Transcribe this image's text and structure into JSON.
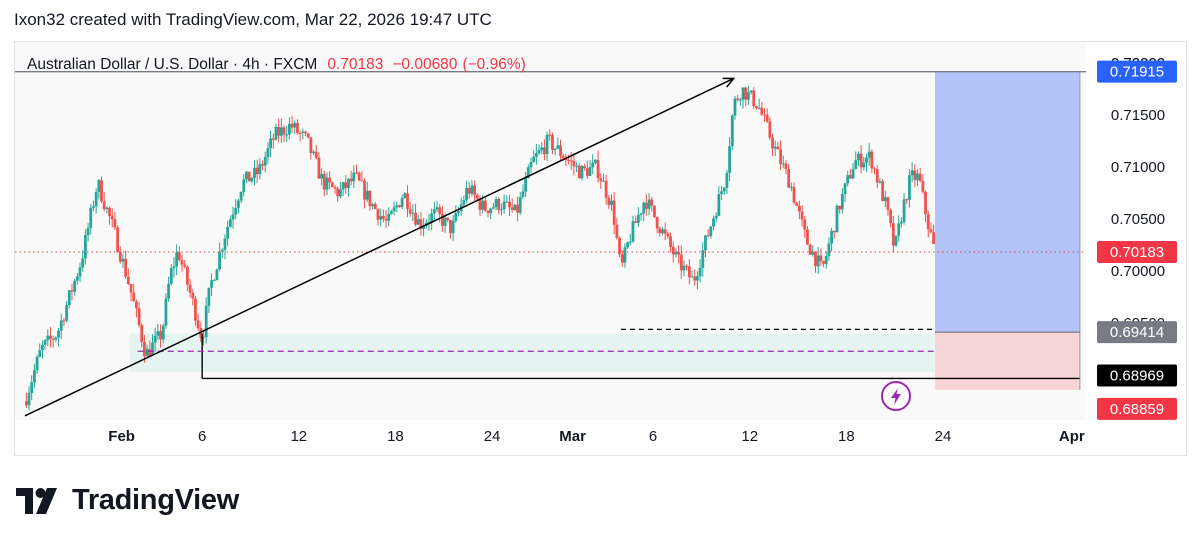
{
  "caption": "Ixon32 created with TradingView.com, Mar 22, 2026 19:47 UTC",
  "logo": {
    "text": "TradingView",
    "icon": "tradingview-logo-icon"
  },
  "colors": {
    "up": "#26a69a",
    "down": "#ef5350",
    "target_zone": "#b3c4fb",
    "stop_zone": "#f7d4d6",
    "support_zone": "#e6f4f1",
    "price_line": "#e3424e",
    "badge_current": "#f23645",
    "badge_target": "#2962ff",
    "badge_entry": "#787b86",
    "badge_level": "#000000",
    "badge_stop": "#f23645",
    "dashed_purple": "#9c27b0",
    "icon": "#9c27b0"
  },
  "chart_data": {
    "type": "candlestick",
    "symbol": "Australian Dollar / U.S. Dollar",
    "interval": "4h",
    "exchange": "FXCM",
    "last_price": "0.70183",
    "change": "−0.00680",
    "change_pct": "(−0.96%)",
    "ylim": [
      0.6857,
      0.722
    ],
    "x_range": [
      "2026-01-26T00:00",
      "2026-04-02T12:00"
    ],
    "y_ticks": [
      "0.70000",
      "0.70500",
      "0.71000",
      "0.71500",
      "0.72000"
    ],
    "x_ticks": [
      {
        "label": "Feb",
        "date": "2026-02-01"
      },
      {
        "label": "6",
        "date": "2026-02-06"
      },
      {
        "label": "12",
        "date": "2026-02-12"
      },
      {
        "label": "18",
        "date": "2026-02-18"
      },
      {
        "label": "24",
        "date": "2026-02-24"
      },
      {
        "label": "Mar",
        "date": "2026-03-01"
      },
      {
        "label": "6",
        "date": "2026-03-06"
      },
      {
        "label": "12",
        "date": "2026-03-12"
      },
      {
        "label": "18",
        "date": "2026-03-18"
      },
      {
        "label": "24",
        "date": "2026-03-24"
      },
      {
        "label": "Apr",
        "date": "2026-04-01"
      }
    ],
    "price_path": [
      [
        "2026-01-26T00:00",
        0.6875
      ],
      [
        "2026-01-27T00:00",
        0.6925
      ],
      [
        "2026-01-28T00:00",
        0.694
      ],
      [
        "2026-01-29T12:00",
        0.701
      ],
      [
        "2026-01-30T12:00",
        0.7085
      ],
      [
        "2026-01-31T12:00",
        0.704
      ],
      [
        "2026-02-01T12:00",
        0.6985
      ],
      [
        "2026-02-02T12:00",
        0.692
      ],
      [
        "2026-02-03T12:00",
        0.694
      ],
      [
        "2026-02-04T00:00",
        0.6995
      ],
      [
        "2026-02-04T12:00",
        0.702
      ],
      [
        "2026-02-05T12:00",
        0.6965
      ],
      [
        "2026-02-06T00:00",
        0.6935
      ],
      [
        "2026-02-06T12:00",
        0.6985
      ],
      [
        "2026-02-07T12:00",
        0.704
      ],
      [
        "2026-02-08T12:00",
        0.7085
      ],
      [
        "2026-02-09T12:00",
        0.7095
      ],
      [
        "2026-02-10T12:00",
        0.713
      ],
      [
        "2026-02-11T12:00",
        0.714
      ],
      [
        "2026-02-12T12:00",
        0.7125
      ],
      [
        "2026-02-13T12:00",
        0.7085
      ],
      [
        "2026-02-14T12:00",
        0.7075
      ],
      [
        "2026-02-15T12:00",
        0.709
      ],
      [
        "2026-02-16T12:00",
        0.7065
      ],
      [
        "2026-02-17T12:00",
        0.7045
      ],
      [
        "2026-02-18T12:00",
        0.7075
      ],
      [
        "2026-02-19T12:00",
        0.7045
      ],
      [
        "2026-02-20T12:00",
        0.7055
      ],
      [
        "2026-02-21T12:00",
        0.704
      ],
      [
        "2026-02-22T12:00",
        0.708
      ],
      [
        "2026-02-23T12:00",
        0.706
      ],
      [
        "2026-02-24T12:00",
        0.7065
      ],
      [
        "2026-02-25T12:00",
        0.7055
      ],
      [
        "2026-02-26T12:00",
        0.7105
      ],
      [
        "2026-02-27T12:00",
        0.7125
      ],
      [
        "2026-02-28T12:00",
        0.711
      ],
      [
        "2026-03-01T12:00",
        0.7095
      ],
      [
        "2026-03-02T12:00",
        0.71
      ],
      [
        "2026-03-03T12:00",
        0.706
      ],
      [
        "2026-03-04T00:00",
        0.7
      ],
      [
        "2026-03-04T12:00",
        0.703
      ],
      [
        "2026-03-05T12:00",
        0.707
      ],
      [
        "2026-03-06T12:00",
        0.704
      ],
      [
        "2026-03-07T12:00",
        0.701
      ],
      [
        "2026-03-08T12:00",
        0.699
      ],
      [
        "2026-03-09T12:00",
        0.704
      ],
      [
        "2026-03-10T12:00",
        0.709
      ],
      [
        "2026-03-11T00:00",
        0.716
      ],
      [
        "2026-03-11T12:00",
        0.7175
      ],
      [
        "2026-03-12T12:00",
        0.716
      ],
      [
        "2026-03-13T12:00",
        0.712
      ],
      [
        "2026-03-14T12:00",
        0.7085
      ],
      [
        "2026-03-15T12:00",
        0.703
      ],
      [
        "2026-03-16T12:00",
        0.7
      ],
      [
        "2026-03-17T12:00",
        0.706
      ],
      [
        "2026-03-18T12:00",
        0.7105
      ],
      [
        "2026-03-19T12:00",
        0.711
      ],
      [
        "2026-03-20T12:00",
        0.706
      ],
      [
        "2026-03-21T00:00",
        0.702
      ],
      [
        "2026-03-21T12:00",
        0.706
      ],
      [
        "2026-03-22T00:00",
        0.709
      ],
      [
        "2026-03-22T12:00",
        0.709
      ],
      [
        "2026-03-23T00:00",
        0.705
      ],
      [
        "2026-03-23T12:00",
        0.7018
      ]
    ],
    "price_labels": {
      "current": "0.70183",
      "target": "0.71915",
      "entry": "0.69414",
      "level": "0.68969",
      "stop": "0.68859",
      "hidden_tick": "0.69500"
    },
    "levels": {
      "current": 0.70183,
      "target": 0.71915,
      "entry": 0.69414,
      "level": 0.68969,
      "stop": 0.68859,
      "dashed_black": 0.6944,
      "dashed_purple": 0.6923,
      "support_zone": [
        0.6903,
        0.694
      ]
    },
    "position_tool": {
      "start": "2026-03-23T12:00",
      "end": "2026-04-01T12:00"
    },
    "support_zone_range": {
      "start": "2026-02-01T12:00",
      "end": "2026-03-23T12:00"
    },
    "trendline": [
      [
        "2026-01-26T00:00",
        0.6861
      ],
      [
        "2026-03-11T00:00",
        0.7185
      ]
    ],
    "horizontal_lines": {
      "level_start": "2026-02-06T00:00",
      "level_end": "2026-04-01T12:00",
      "dashed_black_start": "2026-03-04T00:00",
      "dashed_black_end": "2026-03-23T12:00",
      "dashed_purple_start": "2026-02-02T00:00",
      "dashed_purple_end": "2026-03-23T12:00"
    },
    "grid": false
  }
}
